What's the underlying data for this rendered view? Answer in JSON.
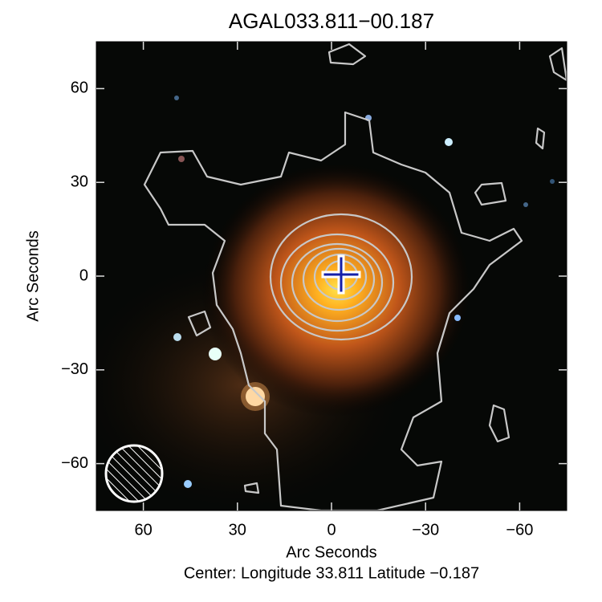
{
  "chart_data": {
    "type": "image",
    "title": "AGAL033.811−00.187",
    "x_label": "Arc Seconds",
    "y_label": "Arc Seconds",
    "footer": "Center:  Longitude 33.811 Latitude −0.187",
    "xlim": [
      75,
      -75
    ],
    "ylim": [
      -75,
      75
    ],
    "xticks": [
      60,
      30,
      0,
      {
        "value": -30,
        "label": "−30"
      },
      {
        "value": -60,
        "label": "−60"
      }
    ],
    "yticks": [
      {
        "value": -60,
        "label": "−60"
      },
      {
        "value": -30,
        "label": "−30"
      },
      0,
      30,
      60
    ]
  }
}
